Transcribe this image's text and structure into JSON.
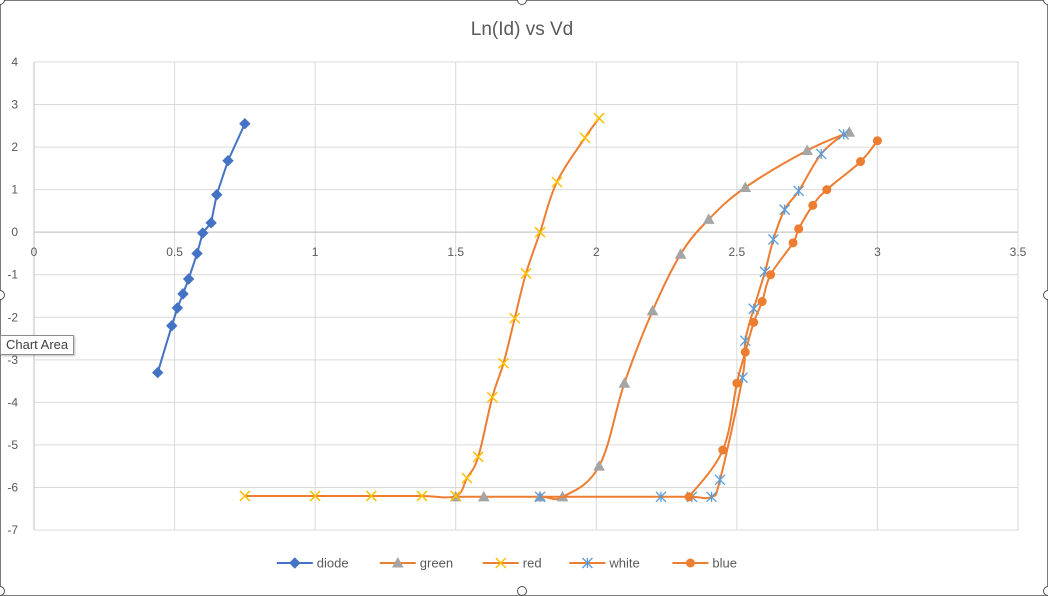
{
  "chart_data": {
    "type": "scatter",
    "title": "Ln(Id) vs Vd",
    "xlabel": "",
    "ylabel": "",
    "xlim": [
      0,
      3.5
    ],
    "ylim": [
      -7,
      4
    ],
    "xticks": [
      0,
      0.5,
      1,
      1.5,
      2,
      2.5,
      3,
      3.5
    ],
    "yticks": [
      -7,
      -6,
      -5,
      -4,
      -3,
      -2,
      -1,
      0,
      1,
      2,
      3,
      4
    ],
    "x_tick_labels": [
      "0",
      "0.5",
      "1",
      "1.5",
      "2",
      "2.5",
      "3",
      "3.5"
    ],
    "y_tick_labels": [
      "-7",
      "-6",
      "-5",
      "-4",
      "-3",
      "-2",
      "-1",
      "0",
      "1",
      "2",
      "3",
      "4"
    ],
    "grid": true,
    "legend_position": "bottom",
    "series": [
      {
        "name": "diode",
        "color": "#4472C4",
        "line_color": "#4472C4",
        "marker": "diamond",
        "smooth": false,
        "x": [
          0.44,
          0.49,
          0.51,
          0.53,
          0.55,
          0.58,
          0.6,
          0.63,
          0.65,
          0.69,
          0.75
        ],
        "y": [
          -3.3,
          -2.2,
          -1.78,
          -1.45,
          -1.1,
          -0.5,
          -0.02,
          0.22,
          0.88,
          1.68,
          2.55
        ]
      },
      {
        "name": "green",
        "color": "#A5A5A5",
        "line_color": "#ED7D31",
        "marker": "triangle",
        "smooth": true,
        "x": [
          1.5,
          1.6,
          1.8,
          1.88,
          2.01,
          2.1,
          2.2,
          2.3,
          2.4,
          2.53,
          2.75,
          2.9
        ],
        "y": [
          -6.22,
          -6.22,
          -6.22,
          -6.22,
          -5.5,
          -3.55,
          -1.85,
          -0.52,
          0.3,
          1.05,
          1.92,
          2.35
        ]
      },
      {
        "name": "red",
        "color": "#FFC000",
        "line_color": "#ED7D31",
        "marker": "x",
        "smooth": true,
        "x": [
          0.75,
          1.0,
          1.2,
          1.38,
          1.5,
          1.54,
          1.58,
          1.63,
          1.67,
          1.71,
          1.75,
          1.8,
          1.86,
          1.96,
          2.01
        ],
        "y": [
          -6.2,
          -6.2,
          -6.2,
          -6.2,
          -6.2,
          -5.78,
          -5.28,
          -3.88,
          -3.08,
          -2.02,
          -0.97,
          0.0,
          1.18,
          2.22,
          2.68
        ]
      },
      {
        "name": "white",
        "color": "#5B9BD5",
        "line_color": "#ED7D31",
        "marker": "star",
        "smooth": true,
        "x": [
          1.8,
          2.23,
          2.34,
          2.41,
          2.44,
          2.52,
          2.53,
          2.56,
          2.6,
          2.63,
          2.67,
          2.72,
          2.8,
          2.88
        ],
        "y": [
          -6.22,
          -6.22,
          -6.22,
          -6.22,
          -5.82,
          -3.42,
          -2.55,
          -1.8,
          -0.93,
          -0.17,
          0.53,
          0.97,
          1.84,
          2.3
        ]
      },
      {
        "name": "blue",
        "color": "#ED7D31",
        "line_color": "#ED7D31",
        "marker": "circle",
        "smooth": true,
        "x": [
          2.33,
          2.45,
          2.5,
          2.53,
          2.56,
          2.59,
          2.62,
          2.7,
          2.72,
          2.77,
          2.82,
          2.94,
          3.0
        ],
        "y": [
          -6.22,
          -5.12,
          -3.55,
          -2.82,
          -2.12,
          -1.63,
          -1.0,
          -0.25,
          0.08,
          0.63,
          1.0,
          1.66,
          2.15
        ]
      }
    ]
  },
  "tooltip": {
    "text": "Chart Area"
  }
}
